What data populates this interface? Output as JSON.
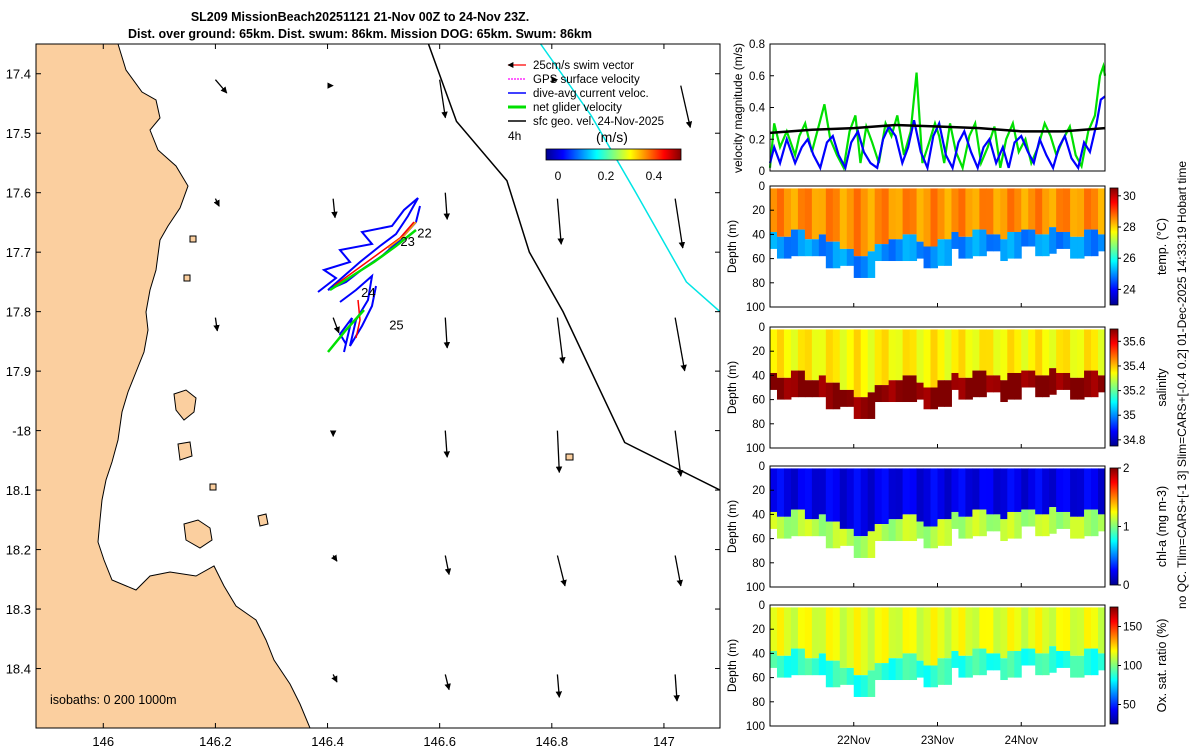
{
  "title": {
    "line1": "SL209 MissionBeach20251121 21-Nov 00Z to 24-Nov 23Z.",
    "line2": "Dist. over ground: 65km. Dist. swum: 86km. Mission DOG: 65km. Swum: 86km"
  },
  "side_label": {
    "line1": "no QC. Tlim=CARS+[-1 3] Slim=CARS+[-0.4 0.2] 01-Dec-2025 14:33:19 Hobart time"
  },
  "colors": {
    "land": "#fbcf9f",
    "coast": "#000000",
    "isobath_200": "#000000",
    "isobath_1000": "#00e5e5",
    "swim_vector": "#ff0000",
    "gps_velocity": "#ff00ff",
    "current": "#0000ff",
    "net_velocity": "#00e000",
    "sfc_geo": "#000000"
  },
  "chart_data": [
    {
      "type": "map",
      "xlim": [
        145.88,
        147.1
      ],
      "ylim_label_note": "latitude south, increasing downward",
      "ylim": [
        17.35,
        18.5
      ],
      "xticks": [
        146,
        146.2,
        146.4,
        146.6,
        146.8,
        147
      ],
      "xtick_labels": [
        "146",
        "146.2",
        "146.4",
        "146.6",
        "146.8",
        "147"
      ],
      "yticks": [
        17.4,
        17.5,
        17.6,
        17.7,
        17.8,
        17.9,
        18.0,
        18.1,
        18.2,
        18.3,
        18.4
      ],
      "ytick_labels": [
        "17.4",
        "17.5",
        "17.6",
        "17.7",
        "17.8",
        "17.9",
        "-18",
        "18.1",
        "18.2",
        "18.3",
        "18.4"
      ],
      "legend": {
        "position": "top-right",
        "entries": [
          {
            "label": "25cm/s swim vector",
            "color": "#ff0000"
          },
          {
            "label": "GPS surface velocity",
            "color": "#ff00ff"
          },
          {
            "label": "dive-avg current veloc.",
            "color": "#0000ff"
          },
          {
            "label": "net glider velocity",
            "color": "#00e000"
          },
          {
            "label": "sfc geo. vel. 24-Nov-2025",
            "color": "#000000"
          }
        ],
        "extra": "4h"
      },
      "colorbar": {
        "label": "(m/s)",
        "ticks": [
          0,
          0.2,
          0.4
        ],
        "tick_labels": [
          "0",
          "0.2",
          "0.4"
        ],
        "range": [
          0,
          0.5
        ]
      },
      "isobath_label": "isobaths: 0    200   1000m",
      "track_day_labels": [
        {
          "label": "22",
          "lon": 146.56,
          "lat": 17.675
        },
        {
          "label": "23",
          "lon": 146.53,
          "lat": 17.69
        },
        {
          "label": "24",
          "lon": 146.46,
          "lat": 17.775
        },
        {
          "label": "25",
          "lon": 146.51,
          "lat": 17.83
        }
      ],
      "geo_vectors": [
        {
          "lon": 146.2,
          "lat": 17.41,
          "u": 0.06,
          "v": -0.07
        },
        {
          "lon": 146.41,
          "lat": 17.42,
          "u": 0,
          "v": 0
        },
        {
          "lon": 146.6,
          "lat": 17.41,
          "u": 0.03,
          "v": -0.2
        },
        {
          "lon": 146.81,
          "lat": 17.41,
          "u": 0,
          "v": 0
        },
        {
          "lon": 147.03,
          "lat": 17.42,
          "u": 0.05,
          "v": -0.22
        },
        {
          "lon": 146.2,
          "lat": 17.61,
          "u": 0.02,
          "v": -0.04
        },
        {
          "lon": 146.41,
          "lat": 17.61,
          "u": 0.01,
          "v": -0.1
        },
        {
          "lon": 146.61,
          "lat": 17.6,
          "u": 0.01,
          "v": -0.14
        },
        {
          "lon": 146.81,
          "lat": 17.61,
          "u": 0.02,
          "v": -0.24
        },
        {
          "lon": 147.02,
          "lat": 17.61,
          "u": 0.04,
          "v": -0.26
        },
        {
          "lon": 146.2,
          "lat": 17.81,
          "u": 0.01,
          "v": -0.07
        },
        {
          "lon": 146.41,
          "lat": 17.81,
          "u": 0.03,
          "v": -0.08
        },
        {
          "lon": 146.61,
          "lat": 17.81,
          "u": 0.01,
          "v": -0.16
        },
        {
          "lon": 146.81,
          "lat": 17.81,
          "u": 0.03,
          "v": -0.24
        },
        {
          "lon": 147.02,
          "lat": 17.81,
          "u": 0.05,
          "v": -0.28
        },
        {
          "lon": 146.41,
          "lat": 18.0,
          "u": 0,
          "v": -0.03
        },
        {
          "lon": 146.61,
          "lat": 18.0,
          "u": 0.01,
          "v": -0.14
        },
        {
          "lon": 146.81,
          "lat": 18.0,
          "u": 0.01,
          "v": -0.22
        },
        {
          "lon": 147.02,
          "lat": 18.0,
          "u": 0.03,
          "v": -0.24
        },
        {
          "lon": 146.41,
          "lat": 18.21,
          "u": 0.02,
          "v": -0.03
        },
        {
          "lon": 146.61,
          "lat": 18.21,
          "u": 0.02,
          "v": -0.1
        },
        {
          "lon": 146.81,
          "lat": 18.21,
          "u": 0.04,
          "v": -0.16
        },
        {
          "lon": 147.02,
          "lat": 18.21,
          "u": 0.03,
          "v": -0.16
        },
        {
          "lon": 146.41,
          "lat": 18.41,
          "u": 0.02,
          "v": -0.04
        },
        {
          "lon": 146.61,
          "lat": 18.41,
          "u": 0.02,
          "v": -0.08
        },
        {
          "lon": 146.81,
          "lat": 18.41,
          "u": 0.01,
          "v": -0.12
        },
        {
          "lon": 147.02,
          "lat": 18.41,
          "u": 0.01,
          "v": -0.14
        }
      ],
      "isobath_200m": [
        [
          146.58,
          17.35
        ],
        [
          146.63,
          17.48
        ],
        [
          146.72,
          17.58
        ],
        [
          146.76,
          17.7
        ],
        [
          146.82,
          17.8
        ],
        [
          146.88,
          17.92
        ],
        [
          146.93,
          18.02
        ],
        [
          147.1,
          18.1
        ]
      ],
      "isobath_1000m": [
        [
          146.78,
          17.35
        ],
        [
          146.87,
          17.47
        ],
        [
          146.95,
          17.6
        ],
        [
          147.04,
          17.75
        ],
        [
          147.1,
          17.8
        ]
      ]
    },
    {
      "type": "line",
      "ylabel": "velocity magnitude (m/s)",
      "ylim": [
        0,
        0.8
      ],
      "yticks": [
        0,
        0.2,
        0.4,
        0.6,
        0.8
      ],
      "ytick_labels": [
        "0",
        "0.2",
        "0.4",
        "0.6",
        "0.8"
      ],
      "xlim_days": [
        21.0,
        25.0
      ],
      "series": [
        {
          "name": "net glider velocity",
          "color": "#00e000",
          "x": [
            21.0,
            21.05,
            21.12,
            21.2,
            21.3,
            21.35,
            21.42,
            21.5,
            21.58,
            21.65,
            21.72,
            21.8,
            21.88,
            21.95,
            22.02,
            22.08,
            22.15,
            22.22,
            22.3,
            22.38,
            22.45,
            22.52,
            22.6,
            22.68,
            22.75,
            22.82,
            22.9,
            22.97,
            23.02,
            23.08,
            23.15,
            23.22,
            23.3,
            23.38,
            23.45,
            23.52,
            23.6,
            23.68,
            23.75,
            23.82,
            23.9,
            23.97,
            24.05,
            24.12,
            24.2,
            24.28,
            24.35,
            24.42,
            24.5,
            24.58,
            24.65,
            24.72,
            24.8,
            24.88,
            24.94,
            24.98,
            25.0
          ],
          "y": [
            0.02,
            0.3,
            0.15,
            0.25,
            0.1,
            0.22,
            0.3,
            0.12,
            0.28,
            0.42,
            0.2,
            0.1,
            0.02,
            0.25,
            0.35,
            0.05,
            0.28,
            0.18,
            0.05,
            0.3,
            0.22,
            0.35,
            0.1,
            0.25,
            0.62,
            0.05,
            0.18,
            0.3,
            0.22,
            0.05,
            0.3,
            0.12,
            0.02,
            0.22,
            0.3,
            0.05,
            0.15,
            0.28,
            0.02,
            0.2,
            0.3,
            0.12,
            0.2,
            0.05,
            0.15,
            0.3,
            0.22,
            0.1,
            0.2,
            0.28,
            0.1,
            0.03,
            0.25,
            0.35,
            0.6,
            0.66,
            0.6
          ]
        },
        {
          "name": "dive-avg current veloc.",
          "color": "#0000ff",
          "x": [
            21.0,
            21.05,
            21.12,
            21.2,
            21.3,
            21.38,
            21.45,
            21.52,
            21.6,
            21.68,
            21.75,
            21.82,
            21.9,
            21.97,
            22.05,
            22.12,
            22.2,
            22.28,
            22.35,
            22.42,
            22.5,
            22.58,
            22.65,
            22.72,
            22.8,
            22.88,
            22.95,
            23.02,
            23.1,
            23.18,
            23.25,
            23.32,
            23.4,
            23.48,
            23.55,
            23.62,
            23.7,
            23.78,
            23.85,
            23.92,
            24.0,
            24.08,
            24.15,
            24.22,
            24.3,
            24.38,
            24.45,
            24.52,
            24.6,
            24.68,
            24.75,
            24.82,
            24.9,
            24.95,
            25.0
          ],
          "y": [
            0.05,
            0.15,
            0.05,
            0.2,
            0.05,
            0.15,
            0.2,
            0.1,
            0.02,
            0.18,
            0.22,
            0.1,
            0.02,
            0.18,
            0.25,
            0.12,
            0.05,
            0.02,
            0.2,
            0.28,
            0.22,
            0.05,
            0.15,
            0.32,
            0.12,
            0.02,
            0.22,
            0.3,
            0.1,
            0.02,
            0.18,
            0.25,
            0.12,
            0.02,
            0.15,
            0.2,
            0.05,
            0.15,
            0.02,
            0.18,
            0.22,
            0.12,
            0.05,
            0.2,
            0.1,
            0.02,
            0.15,
            0.22,
            0.08,
            0.02,
            0.18,
            0.12,
            0.3,
            0.45,
            0.47
          ]
        },
        {
          "name": "sfc geo. vel.",
          "color": "#000000",
          "x": [
            21.0,
            21.5,
            22.0,
            22.5,
            23.0,
            23.5,
            24.0,
            24.5,
            25.0
          ],
          "y": [
            0.24,
            0.26,
            0.27,
            0.29,
            0.28,
            0.27,
            0.25,
            0.25,
            0.27
          ]
        }
      ]
    },
    {
      "type": "heatmap",
      "variable": "temperature",
      "ylabel": "Depth (m)",
      "cbar_label": "temp. (°C)",
      "clim": [
        23,
        30.5
      ],
      "cbar_ticks": [
        24,
        26,
        28,
        30
      ],
      "cbar_tick_labels": [
        "24",
        "26",
        "28",
        "30"
      ],
      "upper_value": 28.5,
      "lower_value": 25.0,
      "colormap": "jet"
    },
    {
      "type": "heatmap",
      "variable": "salinity",
      "ylabel": "Depth (m)",
      "cbar_label": "salinity",
      "clim": [
        34.75,
        35.7
      ],
      "cbar_ticks": [
        34.8,
        35,
        35.2,
        35.4,
        35.6
      ],
      "cbar_tick_labels": [
        "34.8",
        "35",
        "35.2",
        "35.4",
        "35.6"
      ],
      "upper_value": 35.35,
      "lower_value": 35.7,
      "colormap": "jet"
    },
    {
      "type": "heatmap",
      "variable": "chlorophyll-a",
      "ylabel": "Depth (m)",
      "cbar_label": "chl-a (mg m-3)",
      "clim": [
        0,
        2
      ],
      "cbar_ticks": [
        0,
        1,
        2
      ],
      "cbar_tick_labels": [
        "0",
        "1",
        "2"
      ],
      "upper_value": 0.2,
      "lower_value": 1.1,
      "colormap": "jet"
    },
    {
      "type": "heatmap",
      "variable": "oxygen saturation ratio",
      "ylabel": "Depth (m)",
      "cbar_label": "Ox. sat. ratio (%)",
      "clim": [
        25,
        175
      ],
      "cbar_ticks": [
        50,
        100,
        150
      ],
      "cbar_tick_labels": [
        "50",
        "100",
        "150"
      ],
      "upper_value": 115,
      "lower_value": 88,
      "colormap": "jet"
    }
  ],
  "section_axes": {
    "depth_ticks": [
      0,
      20,
      40,
      60,
      80,
      100
    ],
    "depth_tick_labels": [
      "0",
      "20",
      "40",
      "60",
      "80",
      "100"
    ],
    "time_ticks": [
      22,
      23,
      24
    ],
    "time_tick_labels": [
      "22Nov",
      "23Nov",
      "24Nov"
    ],
    "xlim_days": [
      21.0,
      25.0
    ],
    "mixed_layer_depth": [
      38,
      42,
      36,
      44,
      40,
      46,
      52,
      58,
      54,
      48,
      44,
      40,
      46,
      50,
      44,
      38,
      42,
      36,
      40,
      44,
      38,
      36,
      40,
      34,
      38,
      42,
      36,
      40
    ]
  }
}
